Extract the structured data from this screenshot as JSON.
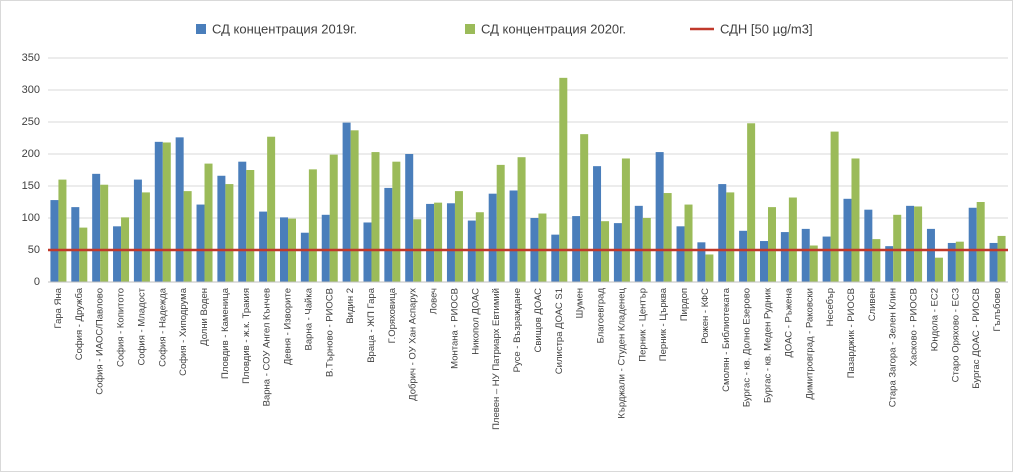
{
  "chart_data": {
    "type": "bar",
    "categories": [
      "Гара Яна",
      "София - Дружба",
      "София - ИАОС/Павлово",
      "София - Копитото",
      "София - Младост",
      "София - Надежда",
      "София - Хиподрума",
      "Долни Воден",
      "Пловдив - Каменица",
      "Пловдив - ж.к. Тракия",
      "Варна - СОУ Ангел Кънчев",
      "Девня - Изворите",
      "Варна - Чайка",
      "В.Търново - РИОСВ",
      "Видин 2",
      "Враца - ЖП Гара",
      "Г.Оряховица",
      "Добрич - ОУ Хан Аспарух",
      "Ловеч",
      "Монтана - РИОСВ",
      "Никопол ДОАС",
      "Плевен – НУ Патриарх Евтимий",
      "Русе - Възраждане",
      "Свищов ДОАС",
      "Силистра ДОАС S1",
      "Шумен",
      "Благоевград",
      "Кърджали - Студен Кладенец",
      "Перник - Център",
      "Перник - Църква",
      "Пирдоп",
      "Рожен - КФС",
      "Смолян - Библиотеката",
      "Бургас - кв. Долно Езерово",
      "Бургас - кв. Меден Рудник",
      "ДОАС - Ръжена",
      "Димитровград - Раковски",
      "Несебър",
      "Пазарджик - РИОСВ",
      "Сливен",
      "Стара Загора - Зелен Клин",
      "Хасково - РИОСВ",
      "Юндола - ЕС2",
      "Старо Оряхово - ЕС3",
      "Бургас ДОАС - РИОСВ",
      "Гълъбово"
    ],
    "series": [
      {
        "name": "СД концентрация 2019г.",
        "color": "#4a7ebb",
        "values": [
          128,
          117,
          169,
          87,
          160,
          219,
          226,
          121,
          166,
          188,
          110,
          101,
          77,
          105,
          249,
          93,
          147,
          200,
          122,
          123,
          96,
          138,
          143,
          100,
          74,
          103,
          181,
          92,
          119,
          203,
          87,
          62,
          153,
          80,
          64,
          78,
          83,
          71,
          130,
          113,
          56,
          119,
          83,
          61,
          116,
          61
        ]
      },
      {
        "name": "СД концентрация 2020г.",
        "color": "#9bbb59",
        "values": [
          160,
          85,
          152,
          101,
          140,
          218,
          142,
          185,
          153,
          175,
          227,
          99,
          176,
          199,
          237,
          203,
          188,
          98,
          124,
          142,
          109,
          183,
          195,
          107,
          319,
          231,
          95,
          193,
          100,
          139,
          121,
          43,
          140,
          248,
          117,
          132,
          57,
          235,
          193,
          67,
          105,
          118,
          38,
          63,
          125,
          72
        ]
      }
    ],
    "reference_line": {
      "name": "СДН [50 µg/m3]",
      "value": 50,
      "color": "#c0392b"
    },
    "ylim": [
      0,
      350
    ],
    "yticks": [
      0,
      50,
      100,
      150,
      200,
      250,
      300,
      350
    ],
    "grid": true
  }
}
